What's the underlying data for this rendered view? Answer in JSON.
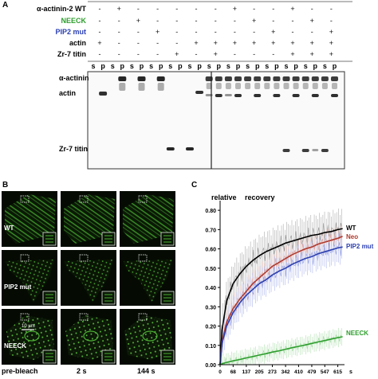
{
  "panel_a": {
    "letter": "A",
    "rows": [
      {
        "label": "α-actinin-2 WT",
        "color": "#000000",
        "marks": [
          "-",
          "+",
          "-",
          "-",
          "-",
          "-",
          "-",
          "+",
          "-",
          "-",
          "+",
          "-",
          "-"
        ]
      },
      {
        "label": "NEECK",
        "color": "#2e9e2e",
        "marks": [
          "-",
          "-",
          "+",
          "-",
          "-",
          "-",
          "-",
          "-",
          "+",
          "-",
          "-",
          "+",
          "-"
        ]
      },
      {
        "label": "PIP2 mut",
        "color": "#2b3fb0",
        "marks": [
          "-",
          "-",
          "-",
          "+",
          "-",
          "-",
          "-",
          "-",
          "-",
          "+",
          "-",
          "-",
          "+"
        ]
      },
      {
        "label": "actin",
        "color": "#000000",
        "marks": [
          "+",
          "-",
          "-",
          "-",
          "-",
          "+",
          "+",
          "+",
          "+",
          "+",
          "+",
          "+",
          "+"
        ]
      },
      {
        "label": "Zr-7 titin",
        "color": "#000000",
        "marks": [
          "-",
          "-",
          "-",
          "-",
          "+",
          "-",
          "+",
          "-",
          "-",
          "-",
          "+",
          "+",
          "+"
        ]
      }
    ],
    "sp_labels": [
      "s",
      "p",
      "s",
      "p",
      "s",
      "p",
      "s",
      "p",
      "s",
      "p",
      "s",
      "p",
      "s",
      "p",
      "s",
      "p",
      "s",
      "p",
      "s",
      "p",
      "s",
      "p",
      "s",
      "p",
      "s",
      "p"
    ],
    "band_labels": [
      "α-actinin",
      "actin",
      "Zr-7 titin"
    ]
  },
  "panel_b": {
    "letter": "B",
    "row_labels": [
      "WT",
      "PIP2 mut",
      "NEECK"
    ],
    "column_labels": [
      "pre-bleach",
      "2 s",
      "144 s"
    ],
    "scale_bar": "10 µm"
  },
  "panel_c": {
    "letter": "C",
    "title_left": "relative",
    "title_right": "recovery",
    "x_unit": "s"
  },
  "chart_data": {
    "type": "line",
    "title": "relative recovery",
    "xlabel": "s",
    "ylabel": "",
    "x_ticks": [
      0,
      68,
      137,
      205,
      273,
      342,
      410,
      479,
      547,
      615
    ],
    "y_ticks": [
      0.0,
      0.1,
      0.2,
      0.3,
      0.4,
      0.5,
      0.6,
      0.7,
      0.8
    ],
    "xlim": [
      0,
      650
    ],
    "ylim": [
      0,
      0.85
    ],
    "grid": false,
    "series": [
      {
        "name": "WT",
        "color": "#000000",
        "x": [
          0,
          10,
          34,
          68,
          103,
          137,
          171,
          205,
          239,
          273,
          308,
          342,
          376,
          410,
          444,
          479,
          513,
          547,
          581,
          615,
          640
        ],
        "values": [
          0.0,
          0.18,
          0.33,
          0.42,
          0.47,
          0.51,
          0.54,
          0.565,
          0.585,
          0.6,
          0.615,
          0.63,
          0.64,
          0.65,
          0.66,
          0.67,
          0.675,
          0.685,
          0.69,
          0.7,
          0.705
        ]
      },
      {
        "name": "Neo",
        "color": "#b03a2e",
        "x": [
          0,
          10,
          34,
          68,
          103,
          137,
          171,
          205,
          239,
          273,
          308,
          342,
          376,
          410,
          444,
          479,
          513,
          547,
          581,
          615,
          640
        ],
        "values": [
          0.0,
          0.12,
          0.22,
          0.29,
          0.34,
          0.38,
          0.42,
          0.45,
          0.48,
          0.51,
          0.53,
          0.55,
          0.57,
          0.585,
          0.6,
          0.61,
          0.625,
          0.635,
          0.645,
          0.655,
          0.665
        ]
      },
      {
        "name": "PIP2 mut",
        "color": "#2b3fb0",
        "x": [
          0,
          10,
          34,
          68,
          103,
          137,
          171,
          205,
          239,
          273,
          308,
          342,
          376,
          410,
          444,
          479,
          513,
          547,
          581,
          615,
          640
        ],
        "values": [
          0.0,
          0.11,
          0.2,
          0.27,
          0.32,
          0.36,
          0.39,
          0.42,
          0.44,
          0.465,
          0.485,
          0.5,
          0.52,
          0.535,
          0.55,
          0.56,
          0.575,
          0.585,
          0.595,
          0.605,
          0.61
        ]
      },
      {
        "name": "NEECK",
        "color": "#2e9e2e",
        "x": [
          0,
          10,
          34,
          68,
          103,
          137,
          171,
          205,
          239,
          273,
          308,
          342,
          376,
          410,
          444,
          479,
          513,
          547,
          581,
          615,
          640
        ],
        "values": [
          0.0,
          0.005,
          0.012,
          0.02,
          0.027,
          0.035,
          0.042,
          0.05,
          0.057,
          0.065,
          0.072,
          0.08,
          0.088,
          0.095,
          0.102,
          0.11,
          0.118,
          0.125,
          0.133,
          0.14,
          0.145
        ]
      }
    ]
  }
}
